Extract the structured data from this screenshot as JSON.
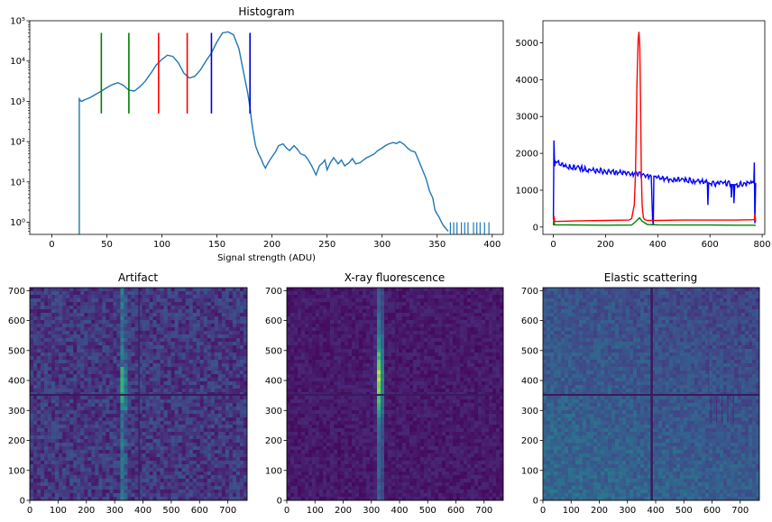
{
  "chart_data": [
    {
      "type": "line",
      "title": "Histogram",
      "xlabel": "Signal strength (ADU)",
      "ylabel": "",
      "yscale": "log",
      "xlim": [
        -20,
        410
      ],
      "ylim": [
        0.5,
        100000
      ],
      "xticks": [
        "0",
        "50",
        "100",
        "150",
        "200",
        "250",
        "300",
        "350",
        "400"
      ],
      "yticks": [
        "10⁰",
        "10¹",
        "10²",
        "10³",
        "10⁴",
        "10⁵"
      ],
      "grid": false,
      "series": [
        {
          "color": "#1f77b4",
          "x": [
            25,
            26,
            27,
            30,
            35,
            40,
            45,
            50,
            55,
            60,
            65,
            70,
            75,
            80,
            85,
            90,
            95,
            100,
            105,
            110,
            115,
            120,
            125,
            130,
            135,
            140,
            145,
            150,
            155,
            160,
            165,
            170,
            175,
            178,
            180,
            182,
            185,
            188,
            190,
            192,
            194,
            196,
            198,
            200,
            203,
            206,
            210,
            213,
            216,
            220,
            223,
            226,
            230,
            233,
            236,
            240,
            243,
            246,
            248,
            250,
            253,
            256,
            260,
            263,
            266,
            270,
            273,
            276,
            280,
            283,
            286,
            290,
            293,
            296,
            300,
            303,
            306,
            310,
            313,
            316,
            320,
            323,
            326,
            330,
            333,
            336,
            340,
            343,
            346,
            348,
            350,
            352,
            354,
            356,
            358,
            360
          ],
          "y": [
            1150,
            1050,
            1000,
            1100,
            1250,
            1500,
            1800,
            2200,
            2600,
            2900,
            2500,
            1900,
            1800,
            2300,
            3200,
            5000,
            8000,
            11000,
            14000,
            13000,
            9000,
            5000,
            3800,
            4200,
            6000,
            10000,
            16000,
            30000,
            50000,
            53000,
            45000,
            20000,
            4000,
            1600,
            700,
            250,
            80,
            48,
            38,
            28,
            22,
            28,
            35,
            42,
            55,
            80,
            88,
            70,
            60,
            80,
            65,
            50,
            45,
            35,
            25,
            15,
            25,
            30,
            35,
            20,
            30,
            40,
            28,
            35,
            25,
            30,
            38,
            28,
            30,
            35,
            40,
            45,
            50,
            60,
            70,
            80,
            88,
            95,
            90,
            100,
            85,
            70,
            60,
            55,
            35,
            22,
            12,
            6,
            4,
            2,
            1.6,
            1.3,
            1.0,
            0.8,
            0.7,
            0.6
          ]
        }
      ],
      "vlines": [
        {
          "x": 45,
          "color": "#008000"
        },
        {
          "x": 70,
          "color": "#008000"
        },
        {
          "x": 97,
          "color": "#ff0000"
        },
        {
          "x": 123,
          "color": "#ff0000"
        },
        {
          "x": 145,
          "color": "#0000cc"
        },
        {
          "x": 180,
          "color": "#0000cc"
        }
      ]
    },
    {
      "type": "line",
      "title": "",
      "xlim": [
        -40,
        810
      ],
      "ylim": [
        -200,
        5600
      ],
      "xticks": [
        "0",
        "200",
        "400",
        "600",
        "800"
      ],
      "yticks": [
        "0",
        "1000",
        "2000",
        "3000",
        "4000",
        "5000"
      ],
      "grid": false,
      "series": [
        {
          "color": "#0000ff",
          "x": [
            0,
            2,
            5,
            8,
            50,
            100,
            150,
            200,
            250,
            300,
            350,
            375,
            380,
            383,
            385,
            388,
            390,
            400,
            450,
            500,
            550,
            590,
            592,
            595,
            600,
            650,
            680,
            682,
            685,
            690,
            692,
            695,
            700,
            760,
            768,
            770,
            772,
            775
          ],
          "y": [
            200,
            2350,
            1650,
            1780,
            1650,
            1600,
            1550,
            1500,
            1480,
            1450,
            1400,
            1380,
            200,
            50,
            1380,
            1380,
            1370,
            1350,
            1300,
            1280,
            1250,
            1200,
            600,
            1200,
            1180,
            1180,
            1170,
            800,
            1150,
            1150,
            650,
            1150,
            1150,
            1200,
            1200,
            1750,
            100,
            1200
          ]
        },
        {
          "color": "#ff0000",
          "x": [
            0,
            2,
            5,
            50,
            100,
            200,
            290,
            300,
            310,
            315,
            320,
            325,
            328,
            331,
            334,
            337,
            340,
            345,
            350,
            360,
            400,
            500,
            600,
            700,
            770,
            772,
            775
          ],
          "y": [
            50,
            300,
            150,
            160,
            170,
            180,
            190,
            230,
            600,
            1500,
            3800,
            5100,
            5300,
            4900,
            3500,
            1500,
            600,
            250,
            200,
            180,
            180,
            190,
            190,
            190,
            200,
            350,
            150
          ]
        },
        {
          "color": "#008000",
          "x": [
            0,
            2,
            5,
            50,
            100,
            200,
            300,
            320,
            330,
            340,
            360,
            400,
            500,
            600,
            700,
            770,
            775
          ],
          "y": [
            50,
            150,
            60,
            60,
            55,
            50,
            55,
            180,
            250,
            160,
            70,
            60,
            55,
            55,
            50,
            50,
            40
          ]
        }
      ]
    },
    {
      "type": "heatmap",
      "title": "Artifact",
      "colormap": "viridis",
      "xlim": [
        0,
        768
      ],
      "ylim": [
        0,
        710
      ],
      "xticks": [
        "0",
        "100",
        "200",
        "300",
        "400",
        "500",
        "600",
        "700"
      ],
      "yticks": [
        "0",
        "100",
        "200",
        "300",
        "400",
        "500",
        "600",
        "700"
      ],
      "grid": false
    },
    {
      "type": "heatmap",
      "title": "X-ray fluorescence",
      "colormap": "viridis",
      "xlim": [
        0,
        768
      ],
      "ylim": [
        0,
        710
      ],
      "xticks": [
        "0",
        "100",
        "200",
        "300",
        "400",
        "500",
        "600",
        "700"
      ],
      "yticks": [
        "0",
        "100",
        "200",
        "300",
        "400",
        "500",
        "600",
        "700"
      ],
      "grid": false
    },
    {
      "type": "heatmap",
      "title": "Elastic scattering",
      "colormap": "viridis",
      "xlim": [
        0,
        768
      ],
      "ylim": [
        0,
        710
      ],
      "xticks": [
        "0",
        "100",
        "200",
        "300",
        "400",
        "500",
        "600",
        "700"
      ],
      "yticks": [
        "0",
        "100",
        "200",
        "300",
        "400",
        "500",
        "600",
        "700"
      ],
      "grid": false
    }
  ]
}
